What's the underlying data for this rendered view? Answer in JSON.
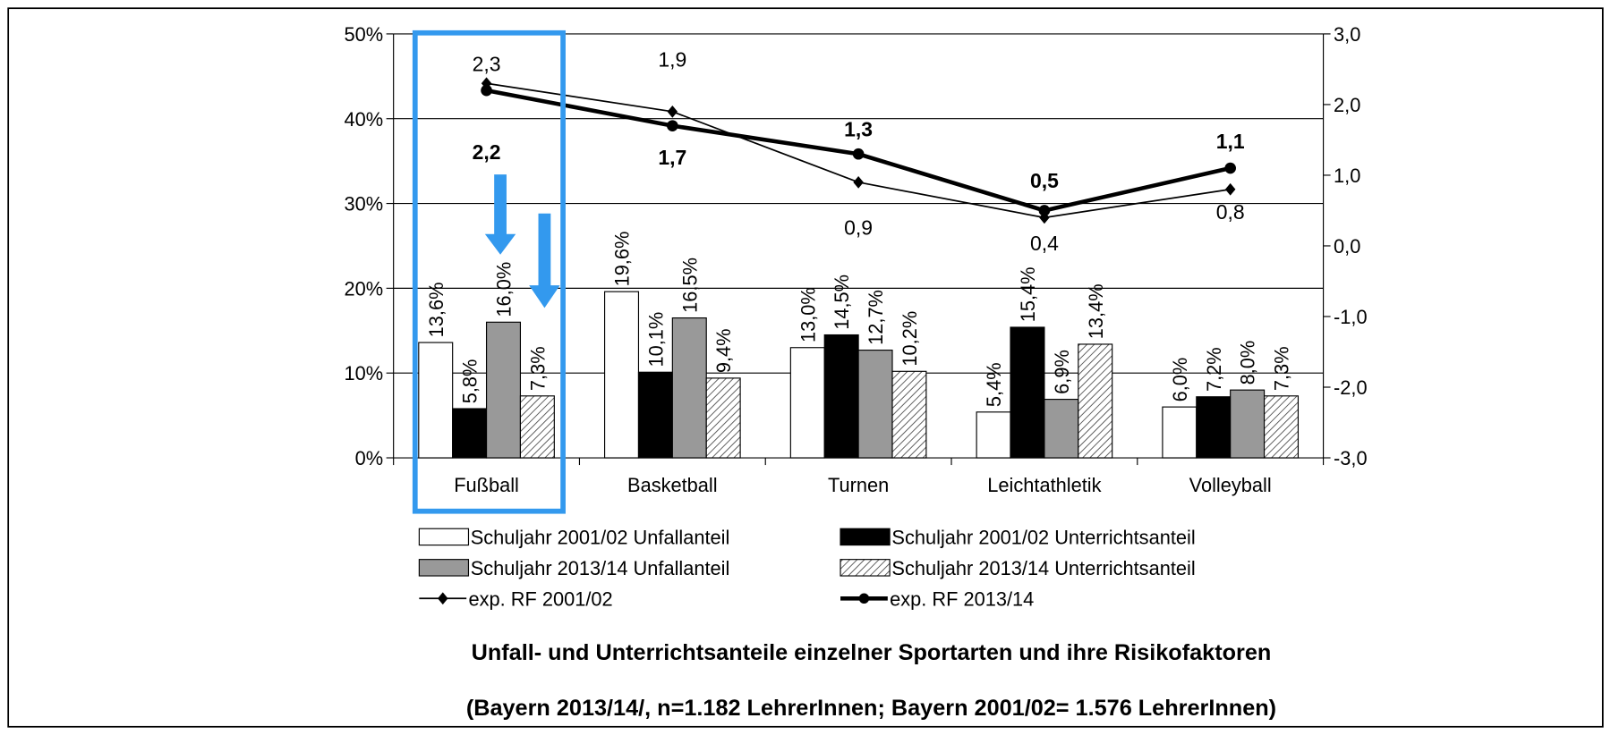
{
  "chart_data": {
    "type": "bar",
    "title": "Unfall- und Unterrichtsanteile einzelner Sportarten und ihre Risikofaktoren",
    "subtitle": "(Bayern 2013/14/, n=1.182 LehrerInnen; Bayern 2001/02= 1.576 LehrerInnen)",
    "categories": [
      "Fußball",
      "Basketball",
      "Turnen",
      "Leichtathletik",
      "Volleyball"
    ],
    "series": [
      {
        "name": "Schuljahr 2001/02 Unfallanteil",
        "color": "#ffffff",
        "values": [
          13.6,
          19.6,
          13.0,
          5.4,
          6.0
        ],
        "value_labels": [
          "13,6%",
          "19,6%",
          "13,0%",
          "5,4%",
          "6,0%"
        ]
      },
      {
        "name": "Schuljahr 2001/02 Unterrichtsanteil",
        "color": "#000000",
        "values": [
          5.8,
          10.1,
          14.5,
          15.4,
          7.2
        ],
        "value_labels": [
          "5,8%",
          "10,1%",
          "14,5%",
          "15,4%",
          "7,2%"
        ]
      },
      {
        "name": "Schuljahr 2013/14 Unfallanteil",
        "color": "#999999",
        "values": [
          16.0,
          16.5,
          12.7,
          6.9,
          8.0
        ],
        "value_labels": [
          "16,0%",
          "16,5%",
          "12,7%",
          "6,9%",
          "8,0%"
        ]
      },
      {
        "name": "Schuljahr 2013/14 Unterrichtsanteil",
        "color": "#ffffff",
        "pattern": "hatch",
        "values": [
          7.3,
          9.4,
          10.2,
          13.4,
          7.3
        ],
        "value_labels": [
          "7,3%",
          "9,4%",
          "10,2%",
          "13,4%",
          "7,3%"
        ]
      },
      {
        "name": "exp. RF 2001/02",
        "type": "line",
        "axis": "y2",
        "color": "#000000",
        "marker": "diamond",
        "values": [
          2.3,
          1.9,
          0.9,
          0.4,
          0.8
        ],
        "value_labels": [
          "2,3",
          "1,9",
          "0,9",
          "0,4",
          "0,8"
        ]
      },
      {
        "name": "exp. RF 2013/14",
        "type": "line",
        "axis": "y2",
        "color": "#000000",
        "marker": "circle",
        "values": [
          2.2,
          1.7,
          1.3,
          0.5,
          1.1
        ],
        "value_labels": [
          "2,2",
          "1,7",
          "1,3",
          "0,5",
          "1,1"
        ]
      }
    ],
    "ylim": [
      0,
      50
    ],
    "yticks": [
      {
        "value": 0,
        "label": "0%"
      },
      {
        "value": 10,
        "label": "10%"
      },
      {
        "value": 20,
        "label": "20%"
      },
      {
        "value": 30,
        "label": "30%"
      },
      {
        "value": 40,
        "label": "40%"
      },
      {
        "value": 50,
        "label": "50%"
      }
    ],
    "y2lim": [
      -3,
      3
    ],
    "y2ticks": [
      {
        "value": -3,
        "label": "-3,0"
      },
      {
        "value": -2,
        "label": "-2,0"
      },
      {
        "value": -1,
        "label": "-1,0"
      },
      {
        "value": 0,
        "label": "0,0"
      },
      {
        "value": 1,
        "label": "1,0"
      },
      {
        "value": 2,
        "label": "2,0"
      },
      {
        "value": 3,
        "label": "3,0"
      }
    ],
    "grid": true
  }
}
